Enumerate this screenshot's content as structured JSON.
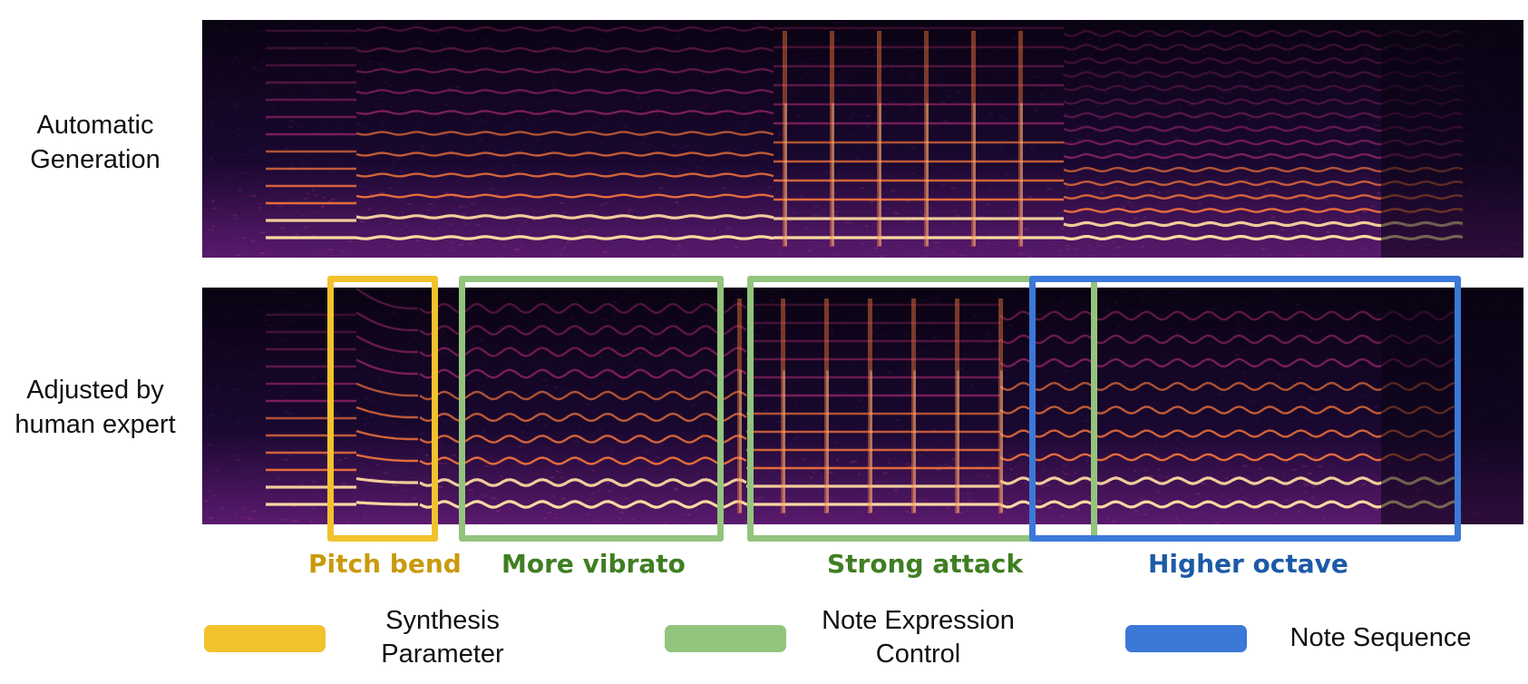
{
  "rows": [
    {
      "label_line1": "Automatic",
      "label_line2": "Generation"
    },
    {
      "label_line1": "Adjusted by",
      "label_line2": "human expert"
    }
  ],
  "highlights": [
    {
      "caption": "Pitch bend",
      "color": "#f2c12e",
      "text_color": "#c99a0c"
    },
    {
      "caption": "More vibrato",
      "color": "#93c47d",
      "text_color": "#3f7e22"
    },
    {
      "caption": "Strong attack",
      "color": "#93c47d",
      "text_color": "#3f7e22"
    },
    {
      "caption": "Higher octave",
      "color": "#3b78d8",
      "text_color": "#1d5aa6"
    }
  ],
  "legend": [
    {
      "line1": "Synthesis",
      "line2": "Parameter",
      "color": "#f2c12e"
    },
    {
      "line1": "Note Expression",
      "line2": "Control",
      "color": "#93c47d"
    },
    {
      "line1": "Note Sequence",
      "line2": "",
      "color": "#3b78d8"
    }
  ],
  "colors": {
    "spectrogram_bg": "#0c0416",
    "harmonic_bright": "#ffd9a0",
    "harmonic_mid": "#ff7b3a",
    "harmonic_dim": "#c0307a"
  }
}
